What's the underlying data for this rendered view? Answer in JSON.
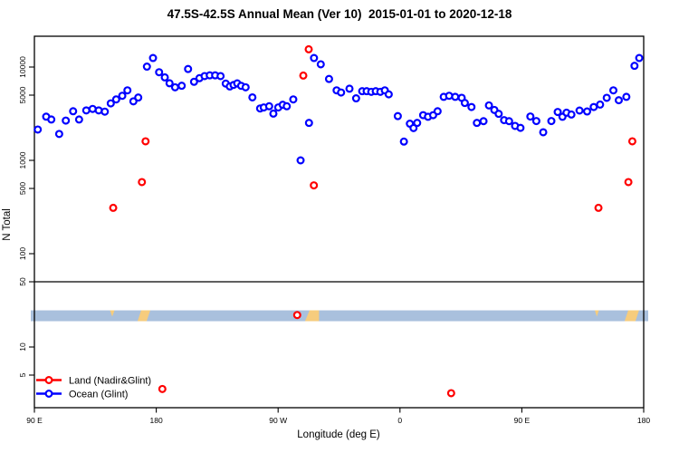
{
  "title": "47.5S-42.5S Annual Mean (Ver 10)  2015-01-01 to 2020-12-18",
  "chart_data": {
    "type": "scatter",
    "title": "47.5S-42.5S Annual Mean (Ver 10)  2015-01-01 to 2020-12-18",
    "xlabel": "Longitude (deg E)",
    "ylabel": "N Total",
    "x_axis": {
      "span_deg": 450,
      "ticks": [
        {
          "label": "90 E",
          "lon": 0
        },
        {
          "label": "180",
          "lon": 90
        },
        {
          "label": "90 W",
          "lon": 180
        },
        {
          "label": "0",
          "lon": 270
        },
        {
          "label": "90 E",
          "lon": 360
        },
        {
          "label": "180",
          "lon": 450
        }
      ]
    },
    "y_axis": {
      "scale": "log",
      "ticks": [
        10000,
        5000,
        1000,
        500,
        100,
        50,
        10,
        5
      ],
      "ylim": [
        2.2,
        21500
      ]
    },
    "reference_line_n": 50,
    "land_ocean_strip": {
      "ocean_color": "#a9c0dd",
      "land_color": "#f6cc7d",
      "n_top": 24.7,
      "n_bottom": 18.9,
      "land_patches": [
        {
          "lon_start": 55.8,
          "lon_end": 59.2,
          "shape": "notch"
        },
        {
          "lon_start": 76.2,
          "lon_end": 82.9,
          "shape": "slash"
        },
        {
          "lon_start": 199.9,
          "lon_end": 210.2,
          "shape": "block"
        },
        {
          "lon_start": 413.9,
          "lon_end": 416.9,
          "shape": "notch"
        },
        {
          "lon_start": 435.9,
          "lon_end": 443.9,
          "shape": "slash"
        }
      ]
    },
    "series": [
      {
        "id": "land",
        "name": "Land (Nadir&Glint)",
        "color": "#ff0000",
        "marker": "open-circle",
        "points": [
          [
            58.2,
            310
          ],
          [
            79.4,
            585
          ],
          [
            82.1,
            1600
          ],
          [
            94.5,
            3.55
          ],
          [
            194.1,
            22
          ],
          [
            198.6,
            8100
          ],
          [
            202.6,
            15500
          ],
          [
            206.4,
            540
          ],
          [
            307.8,
            3.2
          ],
          [
            416.6,
            310
          ],
          [
            438.7,
            585
          ],
          [
            441.6,
            1600
          ]
        ]
      },
      {
        "id": "ocean",
        "name": "Ocean (Glint)",
        "color": "#0000ff",
        "marker": "open-circle",
        "points": [
          [
            2.5,
            2140
          ],
          [
            8.7,
            2940
          ],
          [
            12.5,
            2740
          ],
          [
            18.3,
            1920
          ],
          [
            23.2,
            2670
          ],
          [
            28.6,
            3360
          ],
          [
            33,
            2740
          ],
          [
            38.3,
            3430
          ],
          [
            43,
            3560
          ],
          [
            47.5,
            3430
          ],
          [
            52,
            3330
          ],
          [
            56.4,
            4080
          ],
          [
            60.4,
            4500
          ],
          [
            64.9,
            4920
          ],
          [
            68.7,
            5630
          ],
          [
            73.1,
            4290
          ],
          [
            76.7,
            4710
          ],
          [
            83.1,
            10100
          ],
          [
            87.6,
            12500
          ],
          [
            92.1,
            8800
          ],
          [
            96.3,
            7750
          ],
          [
            99.8,
            6700
          ],
          [
            103.9,
            6070
          ],
          [
            108.8,
            6300
          ],
          [
            113.5,
            9530
          ],
          [
            117.9,
            6950
          ],
          [
            121.9,
            7600
          ],
          [
            125.7,
            8000
          ],
          [
            129.5,
            8150
          ],
          [
            133.5,
            8150
          ],
          [
            137.5,
            8000
          ],
          [
            141.3,
            6650
          ],
          [
            144.3,
            6200
          ],
          [
            147.1,
            6430
          ],
          [
            149.8,
            6680
          ],
          [
            152.7,
            6290
          ],
          [
            156,
            6070
          ],
          [
            161,
            4730
          ],
          [
            166.7,
            3600
          ],
          [
            169.4,
            3690
          ],
          [
            173.4,
            3800
          ],
          [
            176.5,
            3170
          ],
          [
            180.1,
            3690
          ],
          [
            183.4,
            3940
          ],
          [
            186.4,
            3800
          ],
          [
            191.2,
            4500
          ],
          [
            196.6,
            1000
          ],
          [
            202.8,
            2520
          ],
          [
            206.5,
            12500
          ],
          [
            211.5,
            10700
          ],
          [
            217.6,
            7450
          ],
          [
            223.2,
            5630
          ],
          [
            226.5,
            5340
          ],
          [
            232.7,
            5860
          ],
          [
            237.6,
            4620
          ],
          [
            242.1,
            5510
          ],
          [
            245.4,
            5510
          ],
          [
            248.8,
            5430
          ],
          [
            252.1,
            5510
          ],
          [
            255.5,
            5430
          ],
          [
            258.8,
            5630
          ],
          [
            261.7,
            5100
          ],
          [
            268.4,
            2980
          ],
          [
            272.9,
            1590
          ],
          [
            277.3,
            2470
          ],
          [
            280,
            2220
          ],
          [
            282.7,
            2520
          ],
          [
            287.1,
            3050
          ],
          [
            290.7,
            2930
          ],
          [
            294.5,
            3050
          ],
          [
            297.8,
            3360
          ],
          [
            302.3,
            4790
          ],
          [
            306.3,
            4920
          ],
          [
            310.8,
            4790
          ],
          [
            315.6,
            4680
          ],
          [
            317.9,
            4120
          ],
          [
            322.8,
            3730
          ],
          [
            326.8,
            2520
          ],
          [
            331.7,
            2630
          ],
          [
            335.7,
            3880
          ],
          [
            339.7,
            3470
          ],
          [
            342.9,
            3150
          ],
          [
            346.9,
            2700
          ],
          [
            350.6,
            2630
          ],
          [
            355,
            2340
          ],
          [
            359,
            2230
          ],
          [
            366.3,
            2950
          ],
          [
            370.7,
            2640
          ],
          [
            375.8,
            2000
          ],
          [
            381.8,
            2640
          ],
          [
            386.5,
            3300
          ],
          [
            390,
            2930
          ],
          [
            393,
            3240
          ],
          [
            396.6,
            3100
          ],
          [
            402.6,
            3420
          ],
          [
            408.2,
            3340
          ],
          [
            413.1,
            3730
          ],
          [
            417.8,
            3960
          ],
          [
            422.7,
            4680
          ],
          [
            427.6,
            5630
          ],
          [
            431.6,
            4410
          ],
          [
            437.2,
            4790
          ],
          [
            443.2,
            10300
          ],
          [
            446.7,
            12500
          ]
        ]
      }
    ]
  }
}
